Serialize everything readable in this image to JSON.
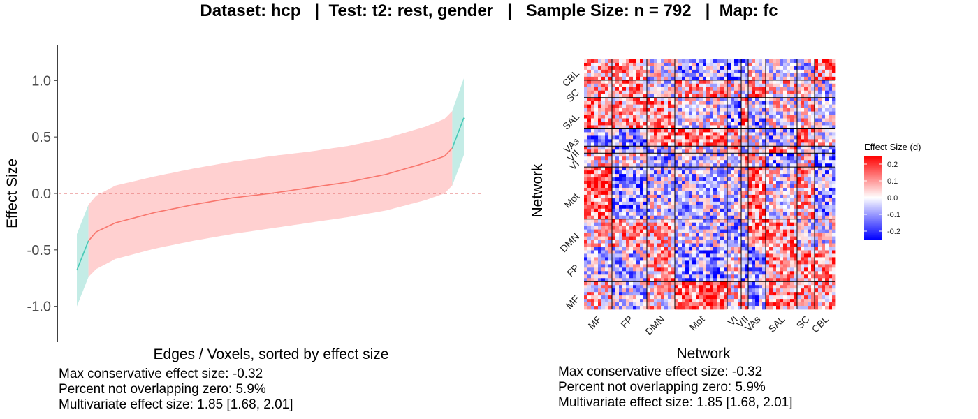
{
  "title": "Dataset: hcp   |  Test: t2: rest, gender   |   Sample Size: n = 792   |  Map: fc",
  "colors": {
    "ci_overlap": "#ffd0d0",
    "ci_nonoverlap": "#c4ece6",
    "line_overlap": "#f8766d",
    "line_nonoverlap": "#48c9b6",
    "zero_line": "#e06666",
    "heat_neg": "#0000ff",
    "heat_mid": "#ffffff",
    "heat_pos": "#ff0000"
  },
  "chart_data": [
    {
      "type": "area",
      "name": "sorted-effect-sizes",
      "xlabel": "Edges / Voxels, sorted by effect size",
      "ylabel": "Effect Size",
      "ylim": [
        -1.3,
        1.3
      ],
      "yticks": [
        "-1.0",
        "-0.5",
        "0.0",
        "0.5",
        "1.0"
      ],
      "ytick_values": [
        -1.0,
        -0.5,
        0.0,
        0.5,
        1.0
      ],
      "reference_line_y": 0,
      "x": [
        0,
        0.03,
        0.05,
        0.1,
        0.2,
        0.3,
        0.4,
        0.5,
        0.6,
        0.7,
        0.8,
        0.9,
        0.95,
        0.97,
        1.0
      ],
      "effect": [
        -0.68,
        -0.42,
        -0.34,
        -0.26,
        -0.17,
        -0.1,
        -0.04,
        0.0,
        0.05,
        0.1,
        0.17,
        0.27,
        0.33,
        0.4,
        0.67
      ],
      "ci_lower": [
        -1.0,
        -0.74,
        -0.67,
        -0.58,
        -0.49,
        -0.42,
        -0.36,
        -0.31,
        -0.26,
        -0.21,
        -0.15,
        -0.06,
        0.0,
        0.07,
        0.34
      ],
      "ci_upper": [
        -0.36,
        -0.1,
        -0.02,
        0.07,
        0.15,
        0.22,
        0.28,
        0.33,
        0.37,
        0.42,
        0.49,
        0.59,
        0.66,
        0.73,
        1.02
      ],
      "nonoverlap_left_end": 0.03,
      "nonoverlap_right_start": 0.97
    },
    {
      "type": "heatmap",
      "name": "network-matrix",
      "xlabel": "Network",
      "ylabel": "Network",
      "x_networks": [
        "MF",
        "FP",
        "DMN",
        "Mot",
        "VI",
        "VII",
        "VAs",
        "SAL",
        "SC",
        "CBL"
      ],
      "y_networks": [
        "CBL",
        "SC",
        "SAL",
        "VAs",
        "VII",
        "VI",
        "Mot",
        "DMN",
        "FP",
        "MF"
      ],
      "legend_title": "Effect Size (d)",
      "legend_ticks": [
        "0.2",
        "0.1",
        "0.0",
        "-0.1",
        "-0.2"
      ],
      "legend_tick_values": [
        0.2,
        0.1,
        0.0,
        -0.1,
        -0.2
      ],
      "color_range": [
        -0.25,
        0.25
      ]
    }
  ],
  "stats_left": {
    "line1": "Max conservative effect size: -0.32",
    "line2": "Percent not overlapping zero: 5.9%",
    "line3": "Multivariate effect size: 1.85 [1.68, 2.01]"
  },
  "stats_right": {
    "line1": "Max conservative effect size: -0.32",
    "line2": "Percent not overlapping zero: 5.9%",
    "line3": "Multivariate effect size: 1.85 [1.68, 2.01]"
  }
}
